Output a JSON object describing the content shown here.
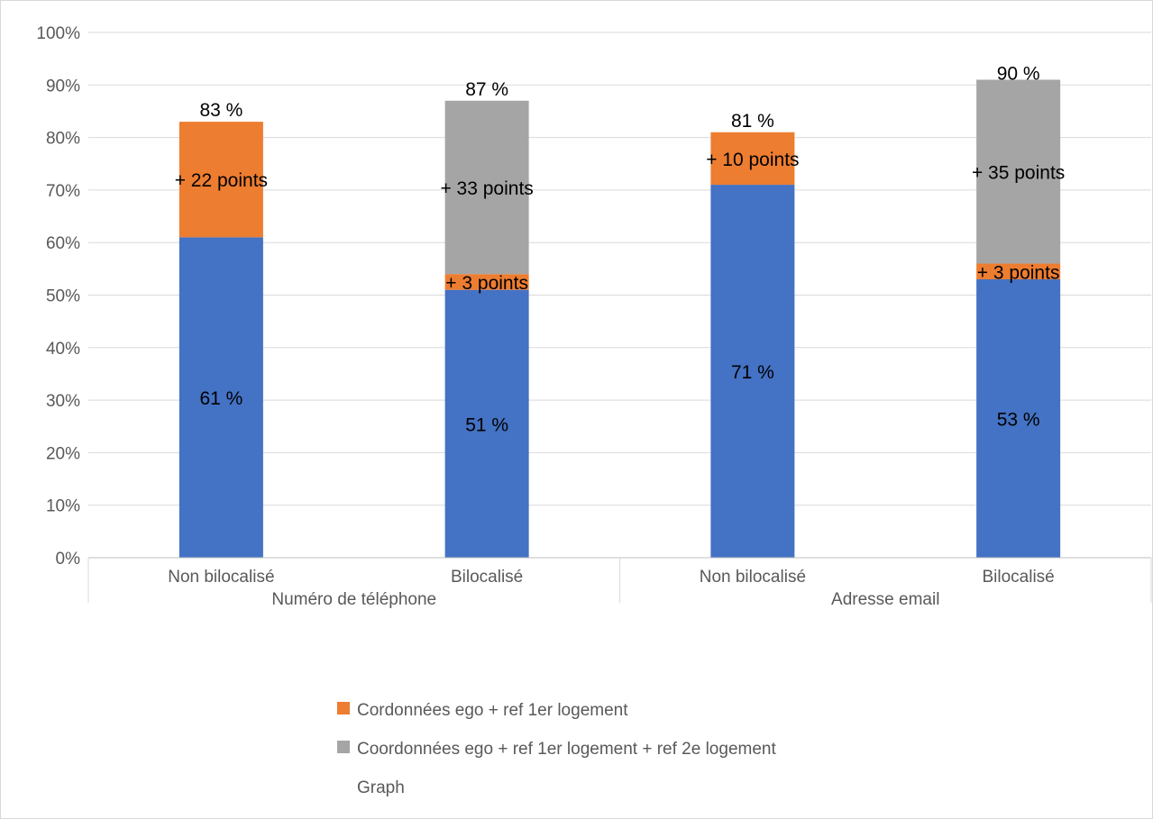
{
  "chart_data": {
    "type": "bar",
    "stacked": true,
    "ylim": [
      0,
      100
    ],
    "y_ticks": [
      "0%",
      "10%",
      "20%",
      "30%",
      "40%",
      "50%",
      "60%",
      "70%",
      "80%",
      "90%",
      "100%"
    ],
    "y_tick_values": [
      0,
      10,
      20,
      30,
      40,
      50,
      60,
      70,
      80,
      90,
      100
    ],
    "grid": true,
    "categories": [
      "Non bilocalisé",
      "Bilocalisé",
      "Non bilocalisé",
      "Bilocalisé"
    ],
    "groups": [
      {
        "label": "Numéro de téléphone",
        "categories": [
          0,
          1
        ]
      },
      {
        "label": "Adresse email",
        "categories": [
          2,
          3
        ]
      }
    ],
    "series": [
      {
        "name": "",
        "color": "#4472c4",
        "values": [
          61,
          51,
          71,
          53
        ],
        "labels": [
          "61 %",
          "51 %",
          "71 %",
          "53 %"
        ]
      },
      {
        "name": "Cordonnées ego + ref 1er logement",
        "color": "#ed7d31",
        "values": [
          22,
          3,
          10,
          3
        ],
        "labels": [
          "+ 22 points",
          "+ 3 points",
          "+ 10 points",
          "+ 3 points"
        ]
      },
      {
        "name": "Coordonnées ego + ref 1er logement + ref 2e logement",
        "color": "#a5a5a5",
        "values": [
          0,
          33,
          0,
          35
        ],
        "labels": [
          "",
          "+ 33 points",
          "",
          "+ 35 points"
        ]
      }
    ],
    "totals": [
      "83 %",
      "87 %",
      "81 %",
      "90 %"
    ],
    "total_values": [
      83,
      87,
      81,
      90
    ],
    "legend": {
      "position": "bottom",
      "entries": [
        {
          "label": "Cordonnées ego + ref 1er logement",
          "color": "#ed7d31"
        },
        {
          "label": "Coordonnées ego + ref 1er logement + ref 2e logement",
          "color": "#a5a5a5"
        },
        {
          "label": "Graph",
          "color": ""
        }
      ]
    }
  }
}
